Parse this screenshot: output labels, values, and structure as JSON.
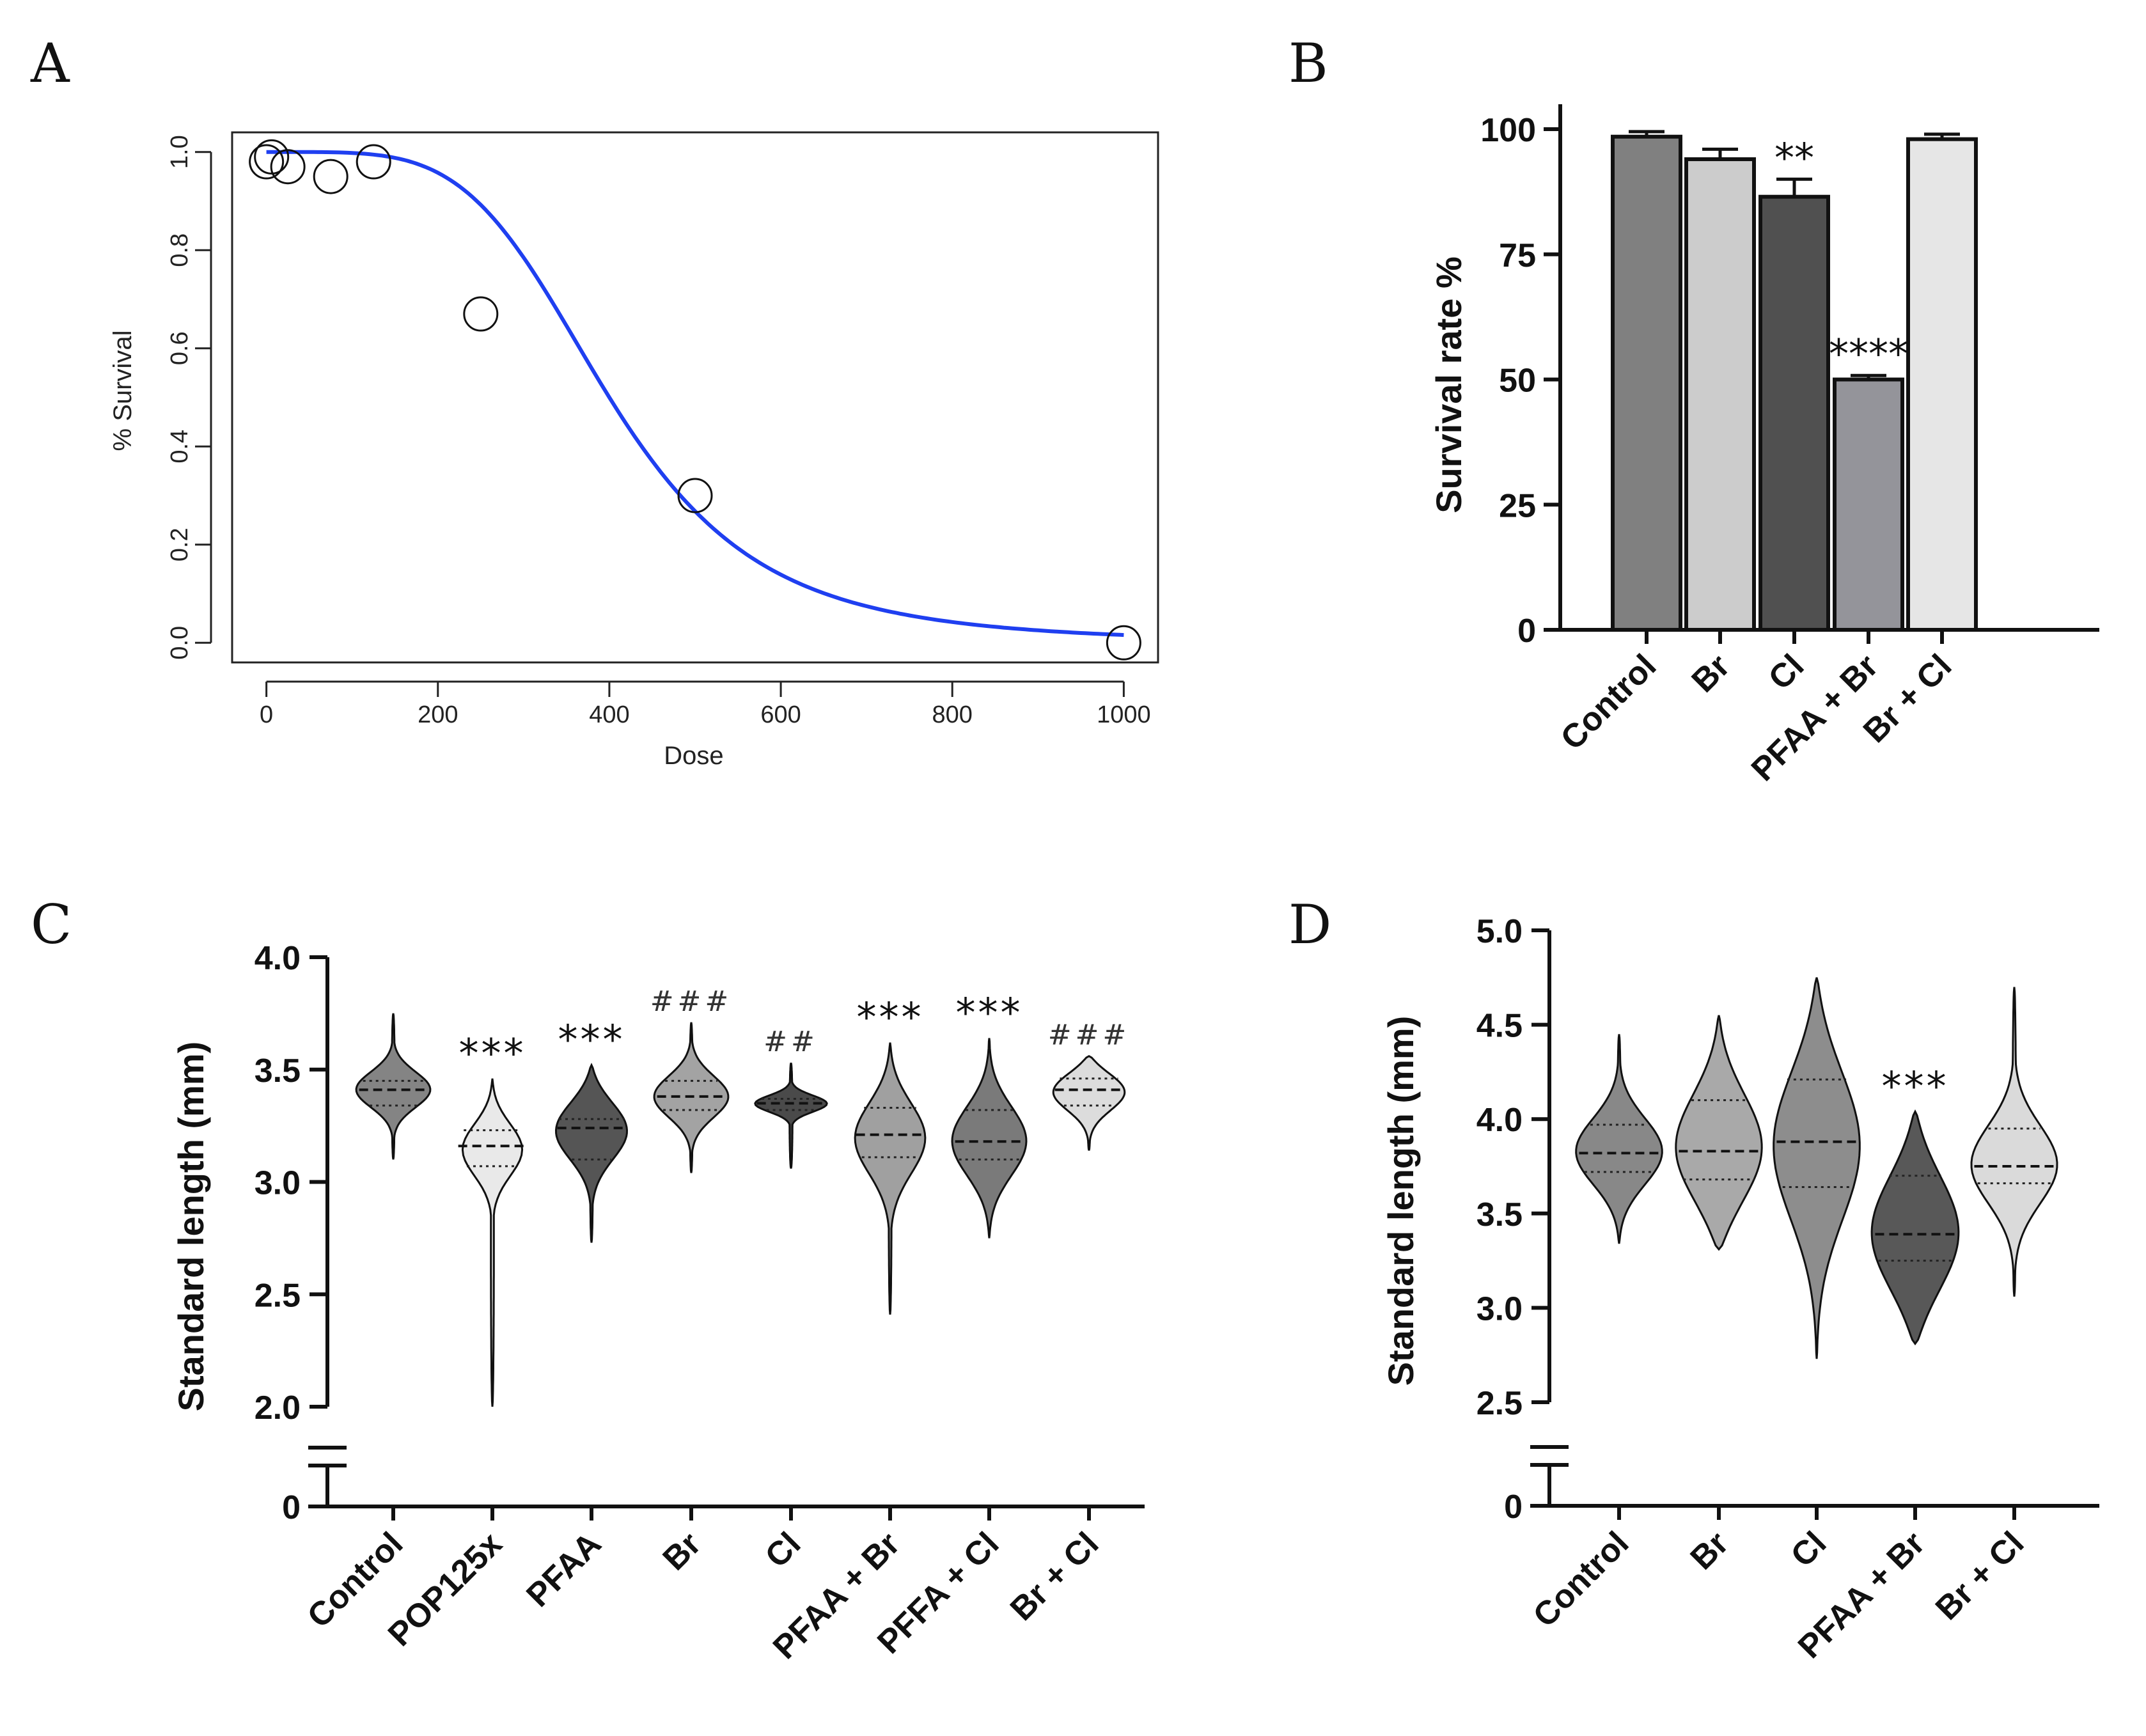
{
  "chart_data": [
    {
      "panel": "A",
      "type": "scatter",
      "title": "",
      "xlabel": "Dose",
      "ylabel": "% Survival",
      "xlim": [
        -40,
        1040
      ],
      "ylim": [
        -0.04,
        1.04
      ],
      "xticks": [
        "0",
        "200",
        "400",
        "600",
        "800",
        "1000"
      ],
      "yticks": [
        "0.0",
        "0.2",
        "0.4",
        "0.6",
        "0.8",
        "1.0"
      ],
      "points": [
        {
          "x": 0,
          "y": 0.98
        },
        {
          "x": 6,
          "y": 0.99
        },
        {
          "x": 25,
          "y": 0.97
        },
        {
          "x": 75,
          "y": 0.95
        },
        {
          "x": 125,
          "y": 0.98
        },
        {
          "x": 250,
          "y": 0.67
        },
        {
          "x": 500,
          "y": 0.3
        },
        {
          "x": 1000,
          "y": 0.0
        }
      ],
      "fit": {
        "type": "logistic",
        "ec50": 400,
        "slope": 4.5,
        "color": "#1f3ff0"
      },
      "colors": {
        "points": "#111111",
        "frame": "#222222"
      }
    },
    {
      "panel": "B",
      "type": "bar",
      "ylabel": "Survival rate %",
      "ylim": [
        0,
        100
      ],
      "yticks": [
        "0",
        "25",
        "50",
        "75",
        "100"
      ],
      "categories": [
        "Control",
        "Br",
        "Cl",
        "PFAA + Br",
        "Br + Cl"
      ],
      "values": [
        98.5,
        94,
        86.5,
        50,
        98
      ],
      "errors": [
        1,
        2,
        3.5,
        0.8,
        1
      ],
      "annotations": [
        "",
        "",
        "**",
        "****",
        ""
      ],
      "colors": [
        "#808080",
        "#cccccc",
        "#505050",
        "#94949a",
        "#e6e6e6"
      ]
    },
    {
      "panel": "C",
      "type": "violin",
      "ylabel": "Standard length (mm)",
      "ylim": [
        2.0,
        4.0
      ],
      "yticks": [
        "2.0",
        "2.5",
        "3.0",
        "3.5",
        "4.0",
        "0"
      ],
      "categories": [
        "Control",
        "POP125x",
        "PFAA",
        "Br",
        "Cl",
        "PFAA + Br",
        "PFFA + Cl",
        "Br + Cl"
      ],
      "medians": [
        3.41,
        3.16,
        3.24,
        3.38,
        3.35,
        3.21,
        3.18,
        3.41
      ],
      "quartiles": [
        [
          3.34,
          3.45
        ],
        [
          3.07,
          3.23
        ],
        [
          3.1,
          3.28
        ],
        [
          3.32,
          3.45
        ],
        [
          3.32,
          3.37
        ],
        [
          3.11,
          3.33
        ],
        [
          3.1,
          3.32
        ],
        [
          3.34,
          3.46
        ]
      ],
      "ranges": [
        [
          3.1,
          3.75
        ],
        [
          2.0,
          3.46
        ],
        [
          2.73,
          3.52
        ],
        [
          3.04,
          3.71
        ],
        [
          3.06,
          3.53
        ],
        [
          2.41,
          3.62
        ],
        [
          2.75,
          3.64
        ],
        [
          3.14,
          3.56
        ]
      ],
      "annotations": [
        {
          "text": "",
          "kind": "star"
        },
        {
          "text": "***",
          "kind": "star"
        },
        {
          "text": "***",
          "kind": "star"
        },
        {
          "text": "###",
          "kind": "hash"
        },
        {
          "text": "##",
          "kind": "hash"
        },
        {
          "text": "***",
          "kind": "star"
        },
        {
          "text": "***",
          "kind": "star"
        },
        {
          "text": "###",
          "kind": "hash"
        }
      ],
      "colors": [
        "#848484",
        "#e9e9e9",
        "#555555",
        "#a3a3a3",
        "#4a4a4a",
        "#a0a0a0",
        "#7a7a7a",
        "#dcdcdc"
      ]
    },
    {
      "panel": "D",
      "type": "violin",
      "ylabel": "Standard length (mm)",
      "ylim": [
        2.5,
        5.0
      ],
      "yticks": [
        "2.5",
        "3.0",
        "3.5",
        "4.0",
        "4.5",
        "5.0",
        "0"
      ],
      "categories": [
        "Control",
        "Br",
        "Cl",
        "PFAA + Br",
        "Br + Cl"
      ],
      "medians": [
        3.82,
        3.83,
        3.88,
        3.39,
        3.75
      ],
      "quartiles": [
        [
          3.72,
          3.97
        ],
        [
          3.68,
          4.1
        ],
        [
          3.64,
          4.21
        ],
        [
          3.25,
          3.7
        ],
        [
          3.66,
          3.95
        ]
      ],
      "ranges": [
        [
          3.34,
          4.45
        ],
        [
          3.31,
          4.55
        ],
        [
          2.73,
          4.75
        ],
        [
          2.81,
          4.04
        ],
        [
          3.06,
          4.7
        ]
      ],
      "annotations": [
        "",
        "",
        "",
        "***",
        ""
      ],
      "colors": [
        "#888888",
        "#a9a9a9",
        "#8d8d8d",
        "#585858",
        "#dadada"
      ]
    }
  ]
}
